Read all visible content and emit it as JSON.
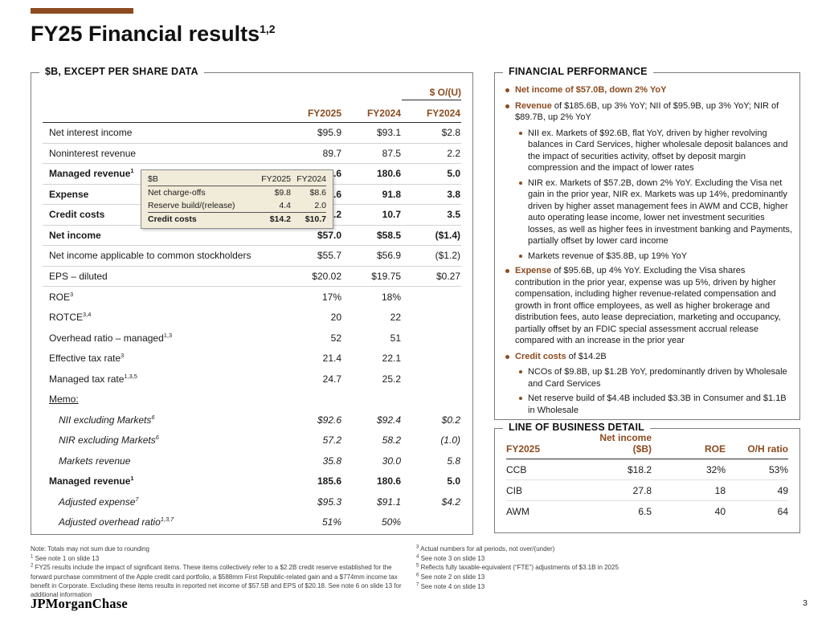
{
  "colors": {
    "accent": "#8C4B1F",
    "tooltip_bg": "#F1EBD9"
  },
  "header": {
    "title": "FY25 Financial results",
    "title_sup": "1,2"
  },
  "left_table": {
    "panel_title": "$B, EXCEPT PER SHARE DATA",
    "ou_label": "$ O/(U)",
    "col_headers": [
      "FY2025",
      "FY2024",
      "FY2024"
    ],
    "rows": [
      {
        "label": "Net interest income",
        "sup": "",
        "v1": "$95.9",
        "v2": "$93.1",
        "v3": "$2.8"
      },
      {
        "label": "Noninterest revenue",
        "sup": "",
        "v1": "89.7",
        "v2": "87.5",
        "v3": "2.2"
      },
      {
        "label": "Managed revenue",
        "sup": "1",
        "v1": "185.6",
        "v2": "180.6",
        "v3": "5.0"
      },
      {
        "label": "Expense",
        "sup": "",
        "v1": "95.6",
        "v2": "91.8",
        "v3": "3.8"
      },
      {
        "label": "Credit costs",
        "sup": "",
        "v1": "14.2",
        "v2": "10.7",
        "v3": "3.5"
      },
      {
        "label": "Net income",
        "sup": "",
        "v1": "$57.0",
        "v2": "$58.5",
        "v3": "($1.4)"
      },
      {
        "label": "Net income applicable to common stockholders",
        "sup": "",
        "v1": "$55.7",
        "v2": "$56.9",
        "v3": "($1.2)"
      },
      {
        "label": "EPS – diluted",
        "sup": "",
        "v1": "$20.02",
        "v2": "$19.75",
        "v3": "$0.27"
      },
      {
        "label": "ROE",
        "sup": "3",
        "v1": "17%",
        "v2": "18%",
        "v3": ""
      },
      {
        "label": "ROTCE",
        "sup": "3,4",
        "v1": "20",
        "v2": "22",
        "v3": ""
      },
      {
        "label": "Overhead ratio – managed",
        "sup": "1,3",
        "v1": "52",
        "v2": "51",
        "v3": ""
      },
      {
        "label": "Effective tax rate",
        "sup": "3",
        "v1": "21.4",
        "v2": "22.1",
        "v3": ""
      },
      {
        "label": "Managed tax rate",
        "sup": "1,3,5",
        "v1": "24.7",
        "v2": "25.2",
        "v3": ""
      },
      {
        "label": "Memo:",
        "sup": "",
        "v1": "",
        "v2": "",
        "v3": ""
      },
      {
        "label": "NII excluding Markets",
        "sup": "6",
        "v1": "$92.6",
        "v2": "$92.4",
        "v3": "$0.2"
      },
      {
        "label": "NIR excluding Markets",
        "sup": "6",
        "v1": "57.2",
        "v2": "58.2",
        "v3": "(1.0)"
      },
      {
        "label": "Markets revenue",
        "sup": "",
        "v1": "35.8",
        "v2": "30.0",
        "v3": "5.8"
      },
      {
        "label": "Managed revenue",
        "sup": "1",
        "v1": "185.6",
        "v2": "180.6",
        "v3": "5.0"
      },
      {
        "label": "Adjusted expense",
        "sup": "7",
        "v1": "$95.3",
        "v2": "$91.1",
        "v3": "$4.2"
      },
      {
        "label": "Adjusted overhead ratio",
        "sup": "1,3,7",
        "v1": "51%",
        "v2": "50%",
        "v3": ""
      }
    ]
  },
  "tooltip": {
    "col0": "$B",
    "col1": "FY2025",
    "col2": "FY2024",
    "rows": [
      {
        "label": "Net charge-offs",
        "v1": "$9.8",
        "v2": "$8.6"
      },
      {
        "label": "Reserve build/(release)",
        "v1": "4.4",
        "v2": "2.0"
      },
      {
        "label": "Credit costs",
        "v1": "$14.2",
        "v2": "$10.7"
      }
    ]
  },
  "performance": {
    "panel_title": "FINANCIAL PERFORMANCE",
    "bullets": [
      {
        "lead": "Net income of $57.0B, down 2% YoY",
        "rest": ""
      },
      {
        "lead": "Revenue",
        "rest": " of $185.6B, up 3% YoY; NII of $95.9B, up 3% YoY; NIR of $89.7B, up 2% YoY"
      },
      {
        "lead": "",
        "rest": "NII ex. Markets of $92.6B, flat YoY, driven by higher revolving balances in Card Services, higher wholesale deposit balances and the impact of securities activity, offset by deposit margin compression and the impact of lower rates"
      },
      {
        "lead": "",
        "rest": "NIR ex. Markets of $57.2B, down 2% YoY. Excluding the Visa net gain in the prior year, NIR ex. Markets was up 14%, predominantly driven by higher asset management fees in AWM and CCB, higher auto operating lease income, lower net investment securities losses, as well as higher fees in investment banking and Payments, partially offset by lower card income"
      },
      {
        "lead": "",
        "rest": "Markets revenue of $35.8B, up 19% YoY"
      },
      {
        "lead": "Expense",
        "rest": " of $95.6B, up 4% YoY. Excluding the Visa shares contribution in the prior year, expense was up 5%, driven by higher compensation, including higher revenue-related compensation and growth in front office employees, as well as higher brokerage and distribution fees, auto lease depreciation, marketing and occupancy, partially offset by an FDIC special assessment accrual release compared with an increase in the prior year"
      },
      {
        "lead": "Credit costs",
        "rest": " of $14.2B"
      },
      {
        "lead": "",
        "rest": "NCOs of $9.8B, up $1.2B YoY, predominantly driven by Wholesale and Card Services"
      },
      {
        "lead": "",
        "rest": "Net reserve build of $4.4B included $3.3B in Consumer and $1.1B in Wholesale"
      }
    ]
  },
  "lob": {
    "panel_title": "LINE OF BUSINESS DETAIL",
    "col_headers": [
      "FY2025",
      "Net income ($B)",
      "ROE",
      "O/H ratio"
    ],
    "rows": [
      {
        "name": "CCB",
        "ni": "$18.2",
        "roe": "32%",
        "oh": "53%"
      },
      {
        "name": "CIB",
        "ni": "27.8",
        "roe": "18",
        "oh": "49"
      },
      {
        "name": "AWM",
        "ni": "6.5",
        "roe": "40",
        "oh": "64"
      }
    ]
  },
  "footnotes": {
    "left": [
      {
        "sup": "",
        "text": "Note: Totals may not sum due to rounding"
      },
      {
        "sup": "1",
        "text": " See note 1 on slide 13"
      },
      {
        "sup": "2",
        "text": " FY25 results include the impact of significant items. These items collectively refer to a $2.2B credit reserve established for the forward purchase commitment of the Apple credit card portfolio, a $588mm First Republic-related gain and a $774mm income tax benefit in Corporate. Excluding these items results in reported net income of $57.5B and EPS of $20.18. See note 6 on slide 13 for additional information"
      }
    ],
    "right": [
      {
        "sup": "3",
        "text": " Actual numbers for all periods, not over/(under)"
      },
      {
        "sup": "4",
        "text": " See note 3 on slide 13"
      },
      {
        "sup": "5",
        "text": " Reflects fully taxable-equivalent (“FTE”) adjustments of $3.1B in 2025"
      },
      {
        "sup": "6",
        "text": " See note 2 on slide 13"
      },
      {
        "sup": "7",
        "text": " See note 4 on slide 13"
      }
    ]
  },
  "footer": {
    "logo": "JPMorganChase",
    "page_number": "3"
  }
}
